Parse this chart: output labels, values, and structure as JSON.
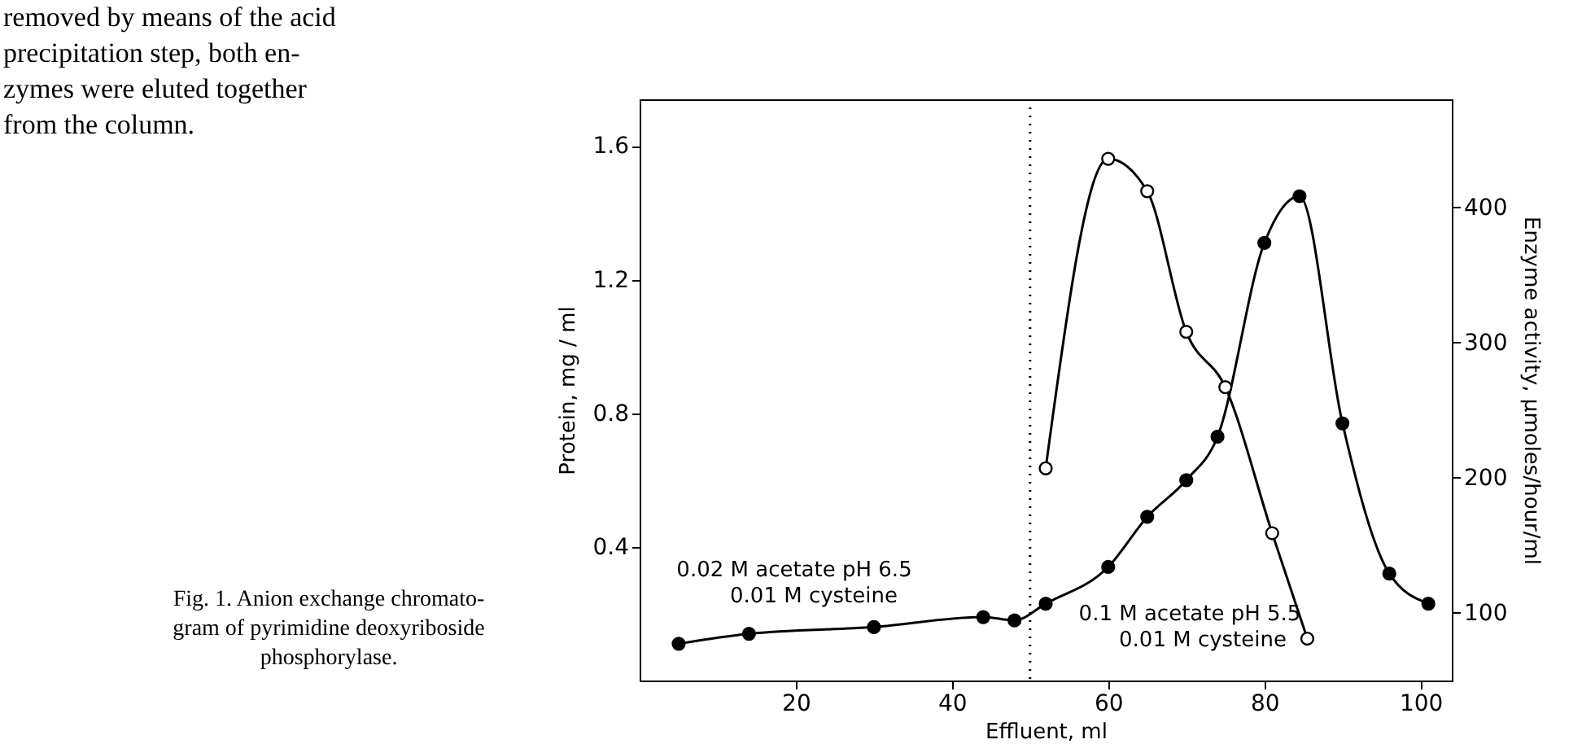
{
  "chart_data": {
    "type": "line",
    "xlabel": "Effluent, ml",
    "ylabel": "Protein, mg / ml",
    "y2label": "Enzyme activity, μmoles/hour/ml",
    "xlim": [
      0,
      104
    ],
    "xticks": [
      20,
      40,
      60,
      80,
      100
    ],
    "ylim": [
      0,
      1.74
    ],
    "yticks": [
      0.4,
      0.8,
      1.2,
      1.6
    ],
    "y2lim": [
      50,
      480
    ],
    "y2ticks": [
      100,
      200,
      300,
      400
    ],
    "grid": false,
    "marker": "circle",
    "line_style": "solid",
    "series": [
      {
        "color": "#000000",
        "x": [
          5,
          14,
          30,
          44,
          48,
          52,
          60,
          65,
          70,
          74,
          80,
          84.5,
          90,
          96,
          101
        ],
        "values": [
          0.11,
          0.14,
          0.16,
          0.19,
          0.18,
          0.23,
          0.34,
          0.49,
          0.6,
          0.73,
          1.31,
          1.45,
          0.77,
          0.32,
          0.23
        ]
      },
      {
        "color": "#000000",
        "axis": "y2",
        "x": [
          52,
          60,
          65,
          70,
          75,
          81,
          85.5
        ],
        "values": [
          207,
          436,
          412,
          308,
          267,
          159,
          81
        ]
      }
    ],
    "ref_lines": [
      {
        "axis": "x",
        "value": 50,
        "line_style": "dotted"
      }
    ],
    "annotations": [
      "removed by means of the acid\nprecipitation step, both en-\nzymes were eluted together\nfrom the column.",
      "Fig. 1. Anion exchange chromato-\ngram of pyrimidine deoxyriboside\nphosphorylase.",
      "0.02 M acetate pH 6.5",
      "0.01 M cysteine",
      "0.1 M acetate pH 5.5",
      "0.01 M cysteine"
    ]
  }
}
